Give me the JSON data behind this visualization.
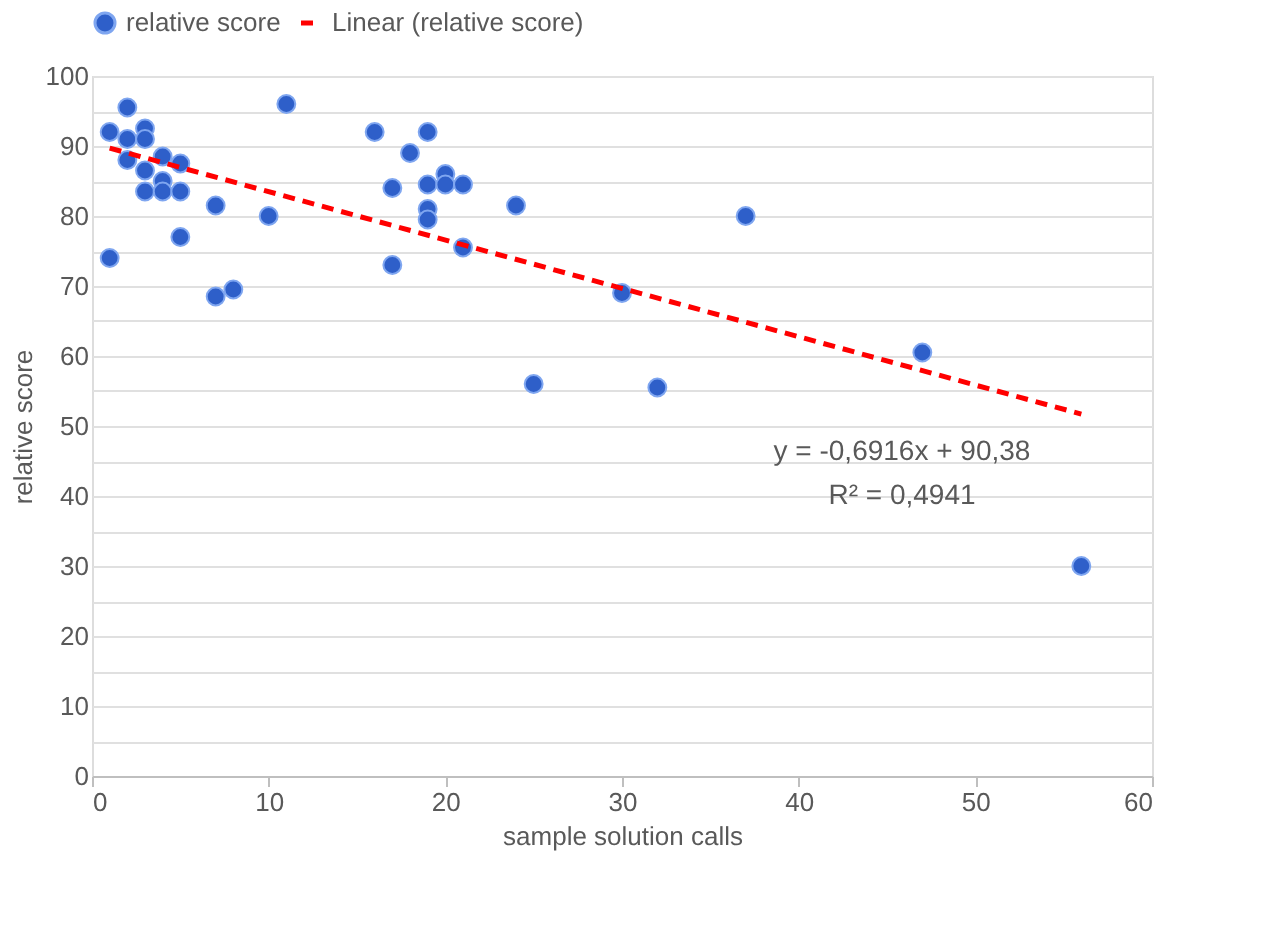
{
  "chart_data": {
    "type": "scatter",
    "xlabel": "sample solution calls",
    "ylabel": "relative score",
    "xlim": [
      0,
      60
    ],
    "xticks": [
      0,
      10,
      20,
      30,
      40,
      50,
      60
    ],
    "ylim": [
      0,
      100
    ],
    "yticks": [
      0,
      {
        "value": 5,
        "label": null
      },
      10,
      {
        "value": 15,
        "label": null
      },
      20,
      {
        "value": 25,
        "label": null
      },
      30,
      {
        "value": 35,
        "label": null
      },
      40,
      {
        "value": 45,
        "label": null
      },
      50,
      {
        "value": 55,
        "label": null
      },
      60,
      {
        "value": 65,
        "label": null
      },
      70,
      {
        "value": 75,
        "label": null
      },
      80,
      {
        "value": 85,
        "label": null
      },
      90,
      {
        "value": 95,
        "label": null
      },
      100
    ],
    "grid": "y",
    "legend": "top",
    "marker": "circle",
    "series": [
      {
        "name": "relative score",
        "color": "#2e5fc9",
        "x": [
          1,
          1,
          2,
          2,
          2,
          3,
          3,
          3,
          3,
          4,
          4,
          4,
          5,
          5,
          5,
          7,
          7,
          8,
          10,
          11,
          16,
          17,
          17,
          18,
          19,
          19,
          19,
          19,
          20,
          20,
          21,
          21,
          24,
          25,
          30,
          32,
          37,
          47,
          56
        ],
        "values": [
          92,
          74,
          95.5,
          91,
          88,
          92.5,
          91,
          86.5,
          83.5,
          88.5,
          85,
          83.5,
          87.5,
          83.5,
          77,
          81.5,
          68.5,
          69.5,
          80,
          96,
          92,
          84,
          73,
          89,
          92,
          84.5,
          81,
          79.5,
          86,
          84.5,
          84.5,
          75.5,
          81.5,
          56,
          69,
          55.5,
          80,
          60.5,
          30
        ]
      },
      {
        "name": "Linear (relative score)",
        "color": "#ff0000",
        "type": "line",
        "line_style": "dashed",
        "marker": "none",
        "x": [
          1,
          56
        ],
        "values": [
          89.7,
          51.7
        ]
      }
    ],
    "annotations": [
      "y = -0,6916x + 90,38",
      "R² = 0,4941"
    ]
  }
}
